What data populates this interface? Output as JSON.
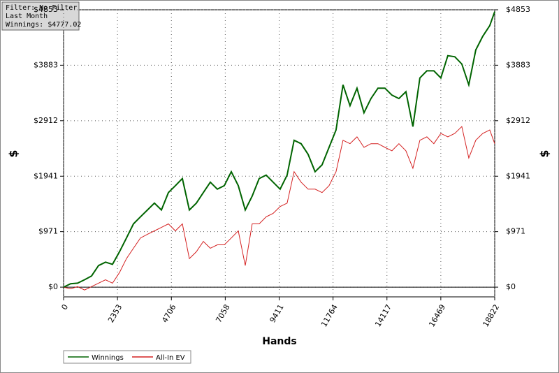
{
  "chart_data": {
    "type": "line",
    "annotations": [
      "Filter: No Filter",
      "Last Month",
      "Winnings: $4777.02"
    ],
    "x_label": "Hands",
    "y_label": "$",
    "y2_label": "$",
    "x": [
      0,
      305,
      610,
      915,
      1220,
      1525,
      1830,
      2135,
      2440,
      2745,
      3050,
      3355,
      3660,
      3965,
      4270,
      4575,
      4880,
      5185,
      5490,
      5795,
      6100,
      6405,
      6710,
      7015,
      7320,
      7625,
      7930,
      8235,
      8540,
      8845,
      9150,
      9455,
      9760,
      10065,
      10370,
      10675,
      10980,
      11285,
      11590,
      11895,
      12200,
      12505,
      12810,
      13115,
      13420,
      13725,
      14030,
      14335,
      14640,
      14945,
      15250,
      15555,
      15860,
      16165,
      16470,
      16775,
      17080,
      17385,
      17690,
      17995,
      18300,
      18605,
      18822
    ],
    "series": [
      {
        "name": "Winnings",
        "color": "#006400",
        "values": [
          0,
          60,
          70,
          130,
          195,
          377,
          438,
          400,
          620,
          860,
          1107,
          1230,
          1350,
          1470,
          1350,
          1655,
          1776,
          1900,
          1350,
          1470,
          1655,
          1837,
          1715,
          1776,
          2020,
          1776,
          1350,
          1594,
          1900,
          1960,
          1837,
          1715,
          1960,
          2570,
          2510,
          2325,
          2020,
          2140,
          2445,
          2750,
          3540,
          3175,
          3480,
          3050,
          3300,
          3480,
          3480,
          3360,
          3300,
          3420,
          2810,
          3660,
          3785,
          3785,
          3660,
          4050,
          4030,
          3905,
          3540,
          4150,
          4390,
          4575,
          4820
        ]
      },
      {
        "name": "All-In EV",
        "color": "#d42020",
        "values": [
          0,
          -30,
          10,
          -50,
          10,
          70,
          130,
          70,
          255,
          500,
          680,
          860,
          925,
          985,
          1045,
          1107,
          985,
          1107,
          500,
          620,
          800,
          680,
          740,
          740,
          860,
          985,
          377,
          1107,
          1107,
          1230,
          1290,
          1410,
          1470,
          2020,
          1837,
          1715,
          1715,
          1655,
          1776,
          2020,
          2570,
          2510,
          2630,
          2445,
          2510,
          2510,
          2445,
          2385,
          2510,
          2385,
          2080,
          2570,
          2630,
          2510,
          2690,
          2630,
          2690,
          2810,
          2260,
          2570,
          2690,
          2750,
          2510
        ]
      }
    ],
    "xlim": [
      0,
      18822
    ],
    "xticks": [
      0,
      2353,
      4706,
      7058,
      9411,
      11764,
      14117,
      16469,
      18822
    ],
    "ylim": [
      -170,
      4853
    ],
    "yticks": [
      {
        "value": 0,
        "label": "$0"
      },
      {
        "value": 971,
        "label": "$971"
      },
      {
        "value": 1941,
        "label": "$1941"
      },
      {
        "value": 2912,
        "label": "$2912"
      },
      {
        "value": 3883,
        "label": "$3883"
      },
      {
        "value": 4853,
        "label": "$4853"
      }
    ],
    "y2lim": [
      -170,
      4853
    ],
    "y2ticks": [
      {
        "value": 0,
        "label": "$0"
      },
      {
        "value": 971,
        "label": "$971"
      },
      {
        "value": 1941,
        "label": "$1941"
      },
      {
        "value": 2912,
        "label": "$2912"
      },
      {
        "value": 3883,
        "label": "$3883"
      },
      {
        "value": 4853,
        "label": "$4853"
      }
    ],
    "grid": true,
    "legend": "bottom-left"
  }
}
